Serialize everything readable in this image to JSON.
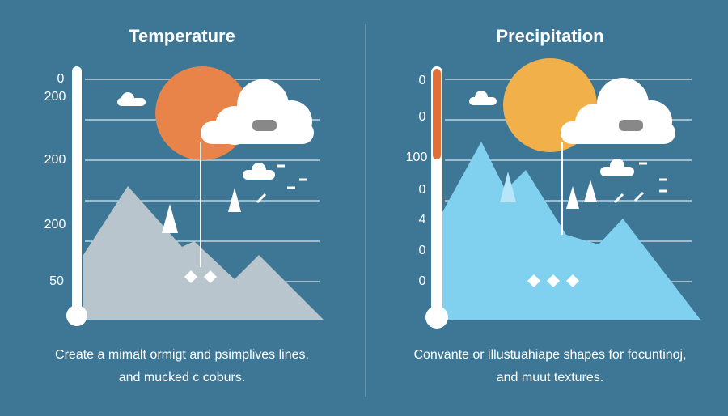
{
  "panels": [
    {
      "title": "Temperature",
      "labels": [
        "0",
        "200",
        "200",
        "200",
        "50"
      ],
      "caption": [
        "Create a mimalt ormigt and psimplives lines,",
        "and mucked c coburs."
      ]
    },
    {
      "title": "Precipitation",
      "labels": [
        "0",
        "0",
        "100",
        "0",
        "4",
        "0",
        "0"
      ],
      "caption": [
        "Convante or illustuahiape shapes for focuntinoj,",
        "and muut textures."
      ]
    }
  ]
}
